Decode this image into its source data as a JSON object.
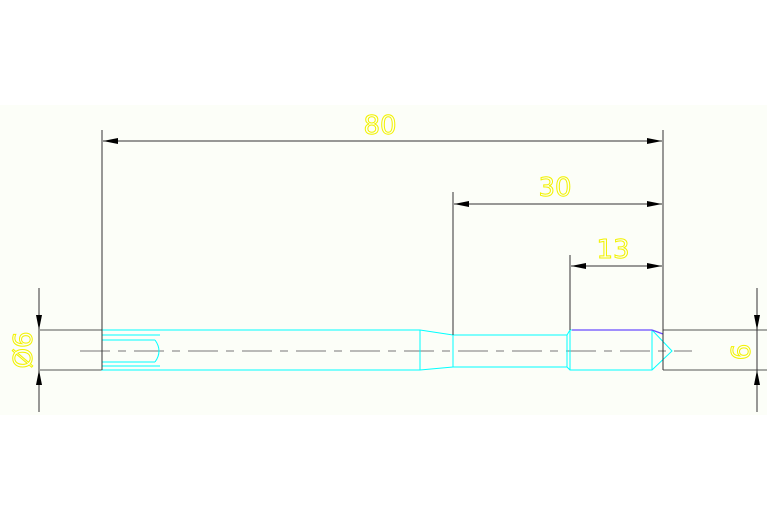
{
  "drawing": {
    "dimensions": {
      "overall_length": "80",
      "neck_to_end": "30",
      "thread_length": "13",
      "diameter": "Ø6",
      "diameter_right": "6"
    },
    "colors": {
      "background_band": "#fcfef8",
      "outline": "#00ffff",
      "dimension_line": "#333333",
      "dimension_text": "#f2f200",
      "thread_edge": "#6a4cff",
      "center_line": "#777777"
    }
  }
}
